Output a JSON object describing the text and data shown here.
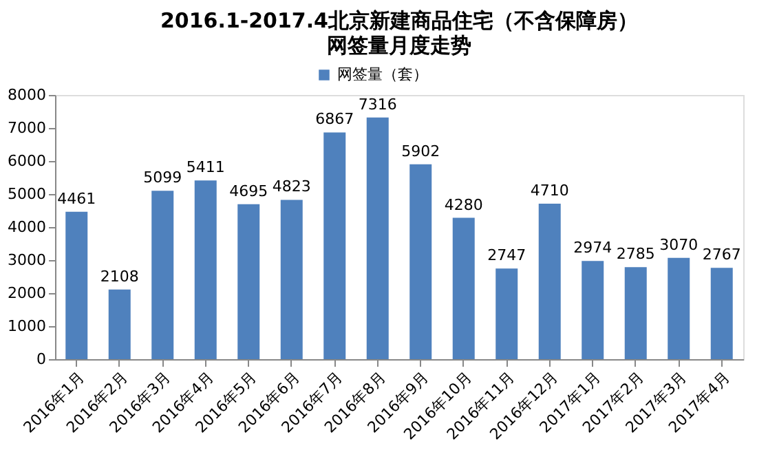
{
  "chart_data": {
    "type": "bar",
    "title": "2016.1-2017.4北京新建商品住宅（不含保障房）",
    "subtitle": "网签量月度走势",
    "categories": [
      "2016年1月",
      "2016年2月",
      "2016年3月",
      "2016年4月",
      "2016年5月",
      "2016年6月",
      "2016年7月",
      "2016年8月",
      "2016年9月",
      "2016年10月",
      "2016年11月",
      "2016年12月",
      "2017年1月",
      "2017年2月",
      "2017年3月",
      "2017年4月"
    ],
    "series": [
      {
        "name": "网签量（套）",
        "color": "#4f81bd",
        "values": [
          4461,
          2108,
          5099,
          5411,
          4695,
          4823,
          6867,
          7316,
          5902,
          4280,
          2747,
          4710,
          2974,
          2785,
          3070,
          2767
        ]
      }
    ],
    "ylim": [
      0,
      8000
    ],
    "yticks": [
      0,
      1000,
      2000,
      3000,
      4000,
      5000,
      6000,
      7000,
      8000
    ],
    "grid": false,
    "legend": "top",
    "data_labels": true
  }
}
